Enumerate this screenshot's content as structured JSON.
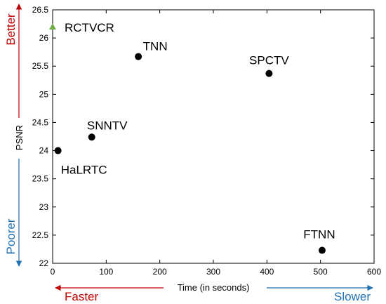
{
  "colors": {
    "better": "#c00000",
    "poorer": "#1f6fb2",
    "faster": "#c00000",
    "slower": "#1f6fb2",
    "highlight": "#70ad47",
    "point": "#000000"
  },
  "chart_data": {
    "type": "scatter",
    "title": "",
    "xlabel": "Time (in seconds)",
    "ylabel": "PSNR",
    "xlim": [
      0,
      600
    ],
    "ylim": [
      22,
      26.5
    ],
    "xticks": [
      "0",
      "100",
      "200",
      "300",
      "400",
      "500",
      "600"
    ],
    "yticks": [
      "22",
      "22.5",
      "23",
      "23.5",
      "24",
      "24.5",
      "25",
      "25.5",
      "26",
      "26.5"
    ],
    "grid": false,
    "points": [
      {
        "label": "RCTVCR",
        "x": 0,
        "y": 26.2,
        "marker": "triangle",
        "color": "#70ad47"
      },
      {
        "label": "TNN",
        "x": 160,
        "y": 25.67,
        "marker": "circle",
        "color": "#000000"
      },
      {
        "label": "SPCTV",
        "x": 404,
        "y": 25.37,
        "marker": "circle",
        "color": "#000000"
      },
      {
        "label": "SNNTV",
        "x": 73,
        "y": 24.24,
        "marker": "circle",
        "color": "#000000"
      },
      {
        "label": "HaLRTC",
        "x": 10,
        "y": 24.0,
        "marker": "circle",
        "color": "#000000"
      },
      {
        "label": "FTNN",
        "x": 503,
        "y": 22.23,
        "marker": "circle",
        "color": "#000000"
      }
    ],
    "annotations": {
      "better": "Better",
      "poorer": "Poorer",
      "faster": "Faster",
      "slower": "Slower"
    }
  }
}
